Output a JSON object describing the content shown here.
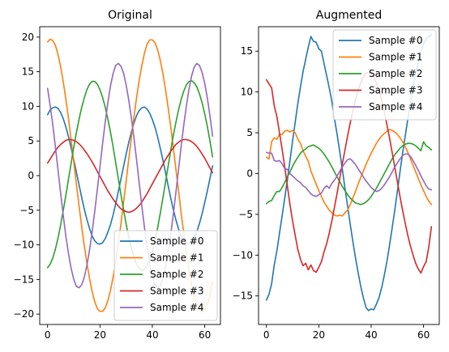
{
  "chart_data": [
    {
      "type": "line",
      "title": "Original",
      "xlabel": "",
      "ylabel": "",
      "xlim": [
        -3,
        66
      ],
      "ylim": [
        -21.5,
        21.5
      ],
      "xticks": [
        0,
        20,
        40,
        60
      ],
      "yticks": [
        -20,
        -15,
        -10,
        -5,
        0,
        5,
        10,
        15,
        20
      ],
      "legend_position": "lower-right",
      "grid": false,
      "x_count": 64,
      "series": [
        {
          "name": "Sample #0",
          "color": "#1f77b4",
          "values": [
            8.8,
            9.5,
            9.8,
            9.9,
            9.7,
            9.1,
            8.2,
            7.0,
            5.6,
            4.0,
            2.3,
            0.5,
            -1.3,
            -3.1,
            -4.8,
            -6.3,
            -7.6,
            -8.7,
            -9.4,
            -9.8,
            -9.9,
            -9.7,
            -9.1,
            -8.2,
            -7.1,
            -5.7,
            -4.1,
            -2.3,
            -0.5,
            1.3,
            3.1,
            4.8,
            6.3,
            7.6,
            8.7,
            9.4,
            9.8,
            9.9,
            9.6,
            9.0,
            8.1,
            7.0,
            5.6,
            4.0,
            2.3,
            0.5,
            -1.4,
            -3.2,
            -4.9,
            -6.4,
            -7.7,
            -8.7,
            -9.4,
            -9.8,
            -9.9,
            -9.6,
            -9.0,
            -8.1,
            -6.9,
            -5.5,
            -3.9,
            -2.2,
            -0.4,
            1.4
          ]
        },
        {
          "name": "Sample #1",
          "color": "#ff7f0e",
          "values": [
            19.3,
            19.7,
            19.5,
            18.8,
            17.5,
            15.7,
            13.5,
            11.0,
            8.2,
            5.1,
            2.0,
            -1.2,
            -4.3,
            -7.3,
            -10.1,
            -12.6,
            -14.8,
            -16.7,
            -18.2,
            -19.2,
            -19.6,
            -19.6,
            -19.1,
            -18.1,
            -16.6,
            -14.7,
            -12.4,
            -9.8,
            -7.0,
            -3.9,
            -0.8,
            2.4,
            5.5,
            8.5,
            11.3,
            13.8,
            15.9,
            17.7,
            19.0,
            19.6,
            19.6,
            19.2,
            18.2,
            16.7,
            14.8,
            12.5,
            9.9,
            7.1,
            4.1,
            0.9,
            -2.2,
            -5.4,
            -8.4,
            -11.1,
            -13.6,
            -15.8,
            -17.5,
            -18.8,
            -19.5,
            -19.7,
            -19.4,
            -18.6,
            -17.2,
            -15.4
          ]
        },
        {
          "name": "Sample #2",
          "color": "#2ca02c",
          "values": [
            -13.3,
            -12.8,
            -11.9,
            -10.6,
            -9.0,
            -7.1,
            -5.0,
            -2.8,
            -0.5,
            1.8,
            4.1,
            6.2,
            8.1,
            9.8,
            11.2,
            12.4,
            13.2,
            13.6,
            13.6,
            13.2,
            12.4,
            11.3,
            9.9,
            8.2,
            6.3,
            4.2,
            1.9,
            -0.4,
            -2.7,
            -4.9,
            -7.0,
            -8.9,
            -10.5,
            -11.8,
            -12.8,
            -13.4,
            -13.7,
            -13.5,
            -13.0,
            -12.1,
            -10.9,
            -9.4,
            -7.6,
            -5.5,
            -3.3,
            -1.0,
            1.3,
            3.6,
            5.8,
            7.7,
            9.5,
            11.0,
            12.2,
            13.1,
            13.6,
            13.7,
            13.4,
            12.8,
            11.8,
            10.5,
            8.9,
            7.1,
            5.0,
            2.7
          ]
        },
        {
          "name": "Sample #3",
          "color": "#d62728",
          "values": [
            1.8,
            2.4,
            3.0,
            3.6,
            4.1,
            4.5,
            4.8,
            5.1,
            5.2,
            5.2,
            5.1,
            4.9,
            4.6,
            4.2,
            3.7,
            3.2,
            2.6,
            2.0,
            1.3,
            0.6,
            -0.1,
            -0.8,
            -1.5,
            -2.2,
            -2.8,
            -3.4,
            -3.9,
            -4.4,
            -4.8,
            -5.0,
            -5.2,
            -5.3,
            -5.2,
            -5.0,
            -4.7,
            -4.3,
            -3.8,
            -3.2,
            -2.6,
            -1.9,
            -1.2,
            -0.5,
            0.2,
            0.9,
            1.6,
            2.3,
            2.9,
            3.5,
            4.0,
            4.5,
            4.8,
            5.1,
            5.2,
            5.2,
            5.1,
            4.9,
            4.6,
            4.2,
            3.7,
            3.1,
            2.5,
            1.8,
            1.1,
            0.4
          ]
        },
        {
          "name": "Sample #4",
          "color": "#9467bd",
          "values": [
            12.6,
            10.1,
            7.3,
            4.1,
            0.8,
            -2.6,
            -5.8,
            -8.8,
            -11.3,
            -13.4,
            -15.0,
            -16.0,
            -16.2,
            -15.8,
            -14.7,
            -13.0,
            -10.8,
            -8.2,
            -5.2,
            -2.0,
            1.3,
            4.6,
            7.7,
            10.5,
            12.9,
            14.7,
            15.9,
            16.2,
            15.8,
            14.8,
            13.1,
            10.9,
            8.3,
            5.4,
            2.2,
            -1.1,
            -4.4,
            -7.5,
            -10.3,
            -12.7,
            -14.6,
            -15.8,
            -16.2,
            -15.9,
            -14.9,
            -13.2,
            -11.1,
            -8.5,
            -5.6,
            -2.4,
            0.9,
            4.2,
            7.3,
            10.1,
            12.5,
            14.4,
            15.7,
            16.2,
            15.9,
            14.9,
            13.3,
            11.2,
            8.6,
            5.7
          ]
        }
      ]
    },
    {
      "type": "line",
      "title": "Augmented",
      "xlabel": "",
      "ylabel": "",
      "xlim": [
        -3,
        66
      ],
      "ylim": [
        -18.5,
        18.0
      ],
      "xticks": [
        0,
        20,
        40,
        60
      ],
      "yticks": [
        -15,
        -10,
        -5,
        0,
        5,
        10,
        15
      ],
      "legend_position": "upper-right",
      "grid": false,
      "x_count": 64,
      "series": [
        {
          "name": "Sample #0",
          "color": "#1f77b4",
          "values": [
            -15.5,
            -14.8,
            -13.5,
            -11.2,
            -9.5,
            -7.3,
            -5.2,
            -3.0,
            -0.8,
            1.6,
            4.0,
            6.3,
            8.6,
            10.6,
            12.5,
            14.0,
            15.5,
            16.8,
            16.2,
            16.1,
            15.3,
            15.0,
            13.5,
            12.0,
            10.5,
            8.8,
            6.7,
            4.8,
            2.7,
            0.5,
            -1.8,
            -4.0,
            -6.2,
            -8.3,
            -10.3,
            -12.1,
            -13.8,
            -15.2,
            -16.4,
            -16.8,
            -16.6,
            -16.7,
            -16.0,
            -15.2,
            -14.0,
            -12.5,
            -10.8,
            -8.8,
            -6.7,
            -4.5,
            -2.2,
            0.2,
            2.5,
            4.6,
            6.7,
            8.7,
            10.6,
            12.3,
            13.8,
            15.0,
            15.9,
            16.5,
            16.8,
            17.0
          ]
        },
        {
          "name": "Sample #1",
          "color": "#ff7f0e",
          "values": [
            2.0,
            1.8,
            3.9,
            4.4,
            4.2,
            4.8,
            4.8,
            5.2,
            5.3,
            5.1,
            5.3,
            5.0,
            4.2,
            3.7,
            2.8,
            2.1,
            1.5,
            0.3,
            -0.5,
            -1.3,
            -2.1,
            -2.8,
            -3.5,
            -4.0,
            -4.5,
            -4.8,
            -5.1,
            -5.2,
            -5.1,
            -5.2,
            -4.8,
            -4.5,
            -3.8,
            -3.0,
            -2.2,
            -1.3,
            -0.5,
            0.3,
            1.1,
            1.8,
            2.5,
            3.1,
            3.7,
            4.2,
            4.6,
            4.9,
            5.2,
            5.4,
            5.3,
            5.1,
            4.8,
            4.4,
            3.9,
            3.3,
            2.6,
            1.8,
            1.0,
            0.2,
            -0.6,
            -1.4,
            -2.1,
            -2.8,
            -3.4,
            -3.8
          ]
        },
        {
          "name": "Sample #2",
          "color": "#2ca02c",
          "values": [
            -3.7,
            -3.4,
            -3.3,
            -2.7,
            -2.2,
            -2.2,
            -1.7,
            -1.1,
            -0.4,
            0.2,
            0.9,
            1.5,
            2.0,
            2.5,
            2.8,
            3.0,
            3.3,
            3.4,
            3.5,
            3.3,
            3.1,
            2.8,
            2.4,
            1.9,
            1.4,
            0.8,
            0.2,
            -0.4,
            -1.0,
            -1.6,
            -2.1,
            -2.6,
            -3.0,
            -3.3,
            -3.6,
            -3.7,
            -3.8,
            -3.7,
            -3.5,
            -3.2,
            -2.8,
            -2.3,
            -1.8,
            -1.2,
            -0.6,
            0.0,
            0.6,
            1.2,
            1.8,
            2.3,
            2.7,
            3.1,
            3.4,
            3.6,
            3.7,
            3.7,
            3.6,
            3.4,
            3.1,
            2.8,
            3.9,
            3.4,
            3.2,
            2.9
          ]
        },
        {
          "name": "Sample #3",
          "color": "#d62728",
          "values": [
            11.5,
            11.0,
            10.5,
            8.3,
            7.0,
            5.0,
            3.0,
            0.8,
            -1.5,
            -3.8,
            -5.8,
            -7.6,
            -9.3,
            -10.5,
            -11.3,
            -11.0,
            -11.8,
            -11.2,
            -11.9,
            -12.1,
            -11.5,
            -10.8,
            -9.6,
            -8.6,
            -7.3,
            -5.8,
            -4.1,
            -2.4,
            -0.6,
            1.2,
            2.9,
            4.6,
            6.2,
            7.7,
            9.0,
            10.2,
            11.1,
            11.9,
            12.3,
            12.4,
            12.2,
            11.8,
            11.1,
            10.2,
            9.0,
            7.6,
            6.0,
            4.4,
            2.6,
            0.8,
            -1.0,
            -2.8,
            -4.5,
            -6.1,
            -7.6,
            -8.9,
            -10.0,
            -11.0,
            -11.7,
            -12.2,
            -11.4,
            -10.8,
            -9.0,
            -6.5
          ]
        },
        {
          "name": "Sample #4",
          "color": "#9467bd",
          "values": [
            2.6,
            2.5,
            2.5,
            1.6,
            1.5,
            1.6,
            1.2,
            0.6,
            0.5,
            0.0,
            -0.3,
            -0.6,
            -0.9,
            -1.1,
            -1.5,
            -1.7,
            -2.1,
            -2.5,
            -2.7,
            -2.8,
            -2.6,
            -2.4,
            -1.8,
            -1.5,
            -1.8,
            -1.2,
            -0.8,
            -0.3,
            0.3,
            0.8,
            1.3,
            1.7,
            1.8,
            1.5,
            1.1,
            0.6,
            0.1,
            -0.4,
            -0.9,
            -1.3,
            -1.7,
            -2.0,
            -2.2,
            -2.1,
            -1.8,
            -1.4,
            -0.9,
            -0.4,
            0.2,
            0.8,
            1.3,
            1.8,
            2.2,
            2.4,
            2.4,
            2.1,
            1.6,
            1.0,
            0.4,
            -0.3,
            -0.9,
            -1.5,
            -1.9,
            -2.0
          ]
        }
      ]
    }
  ]
}
